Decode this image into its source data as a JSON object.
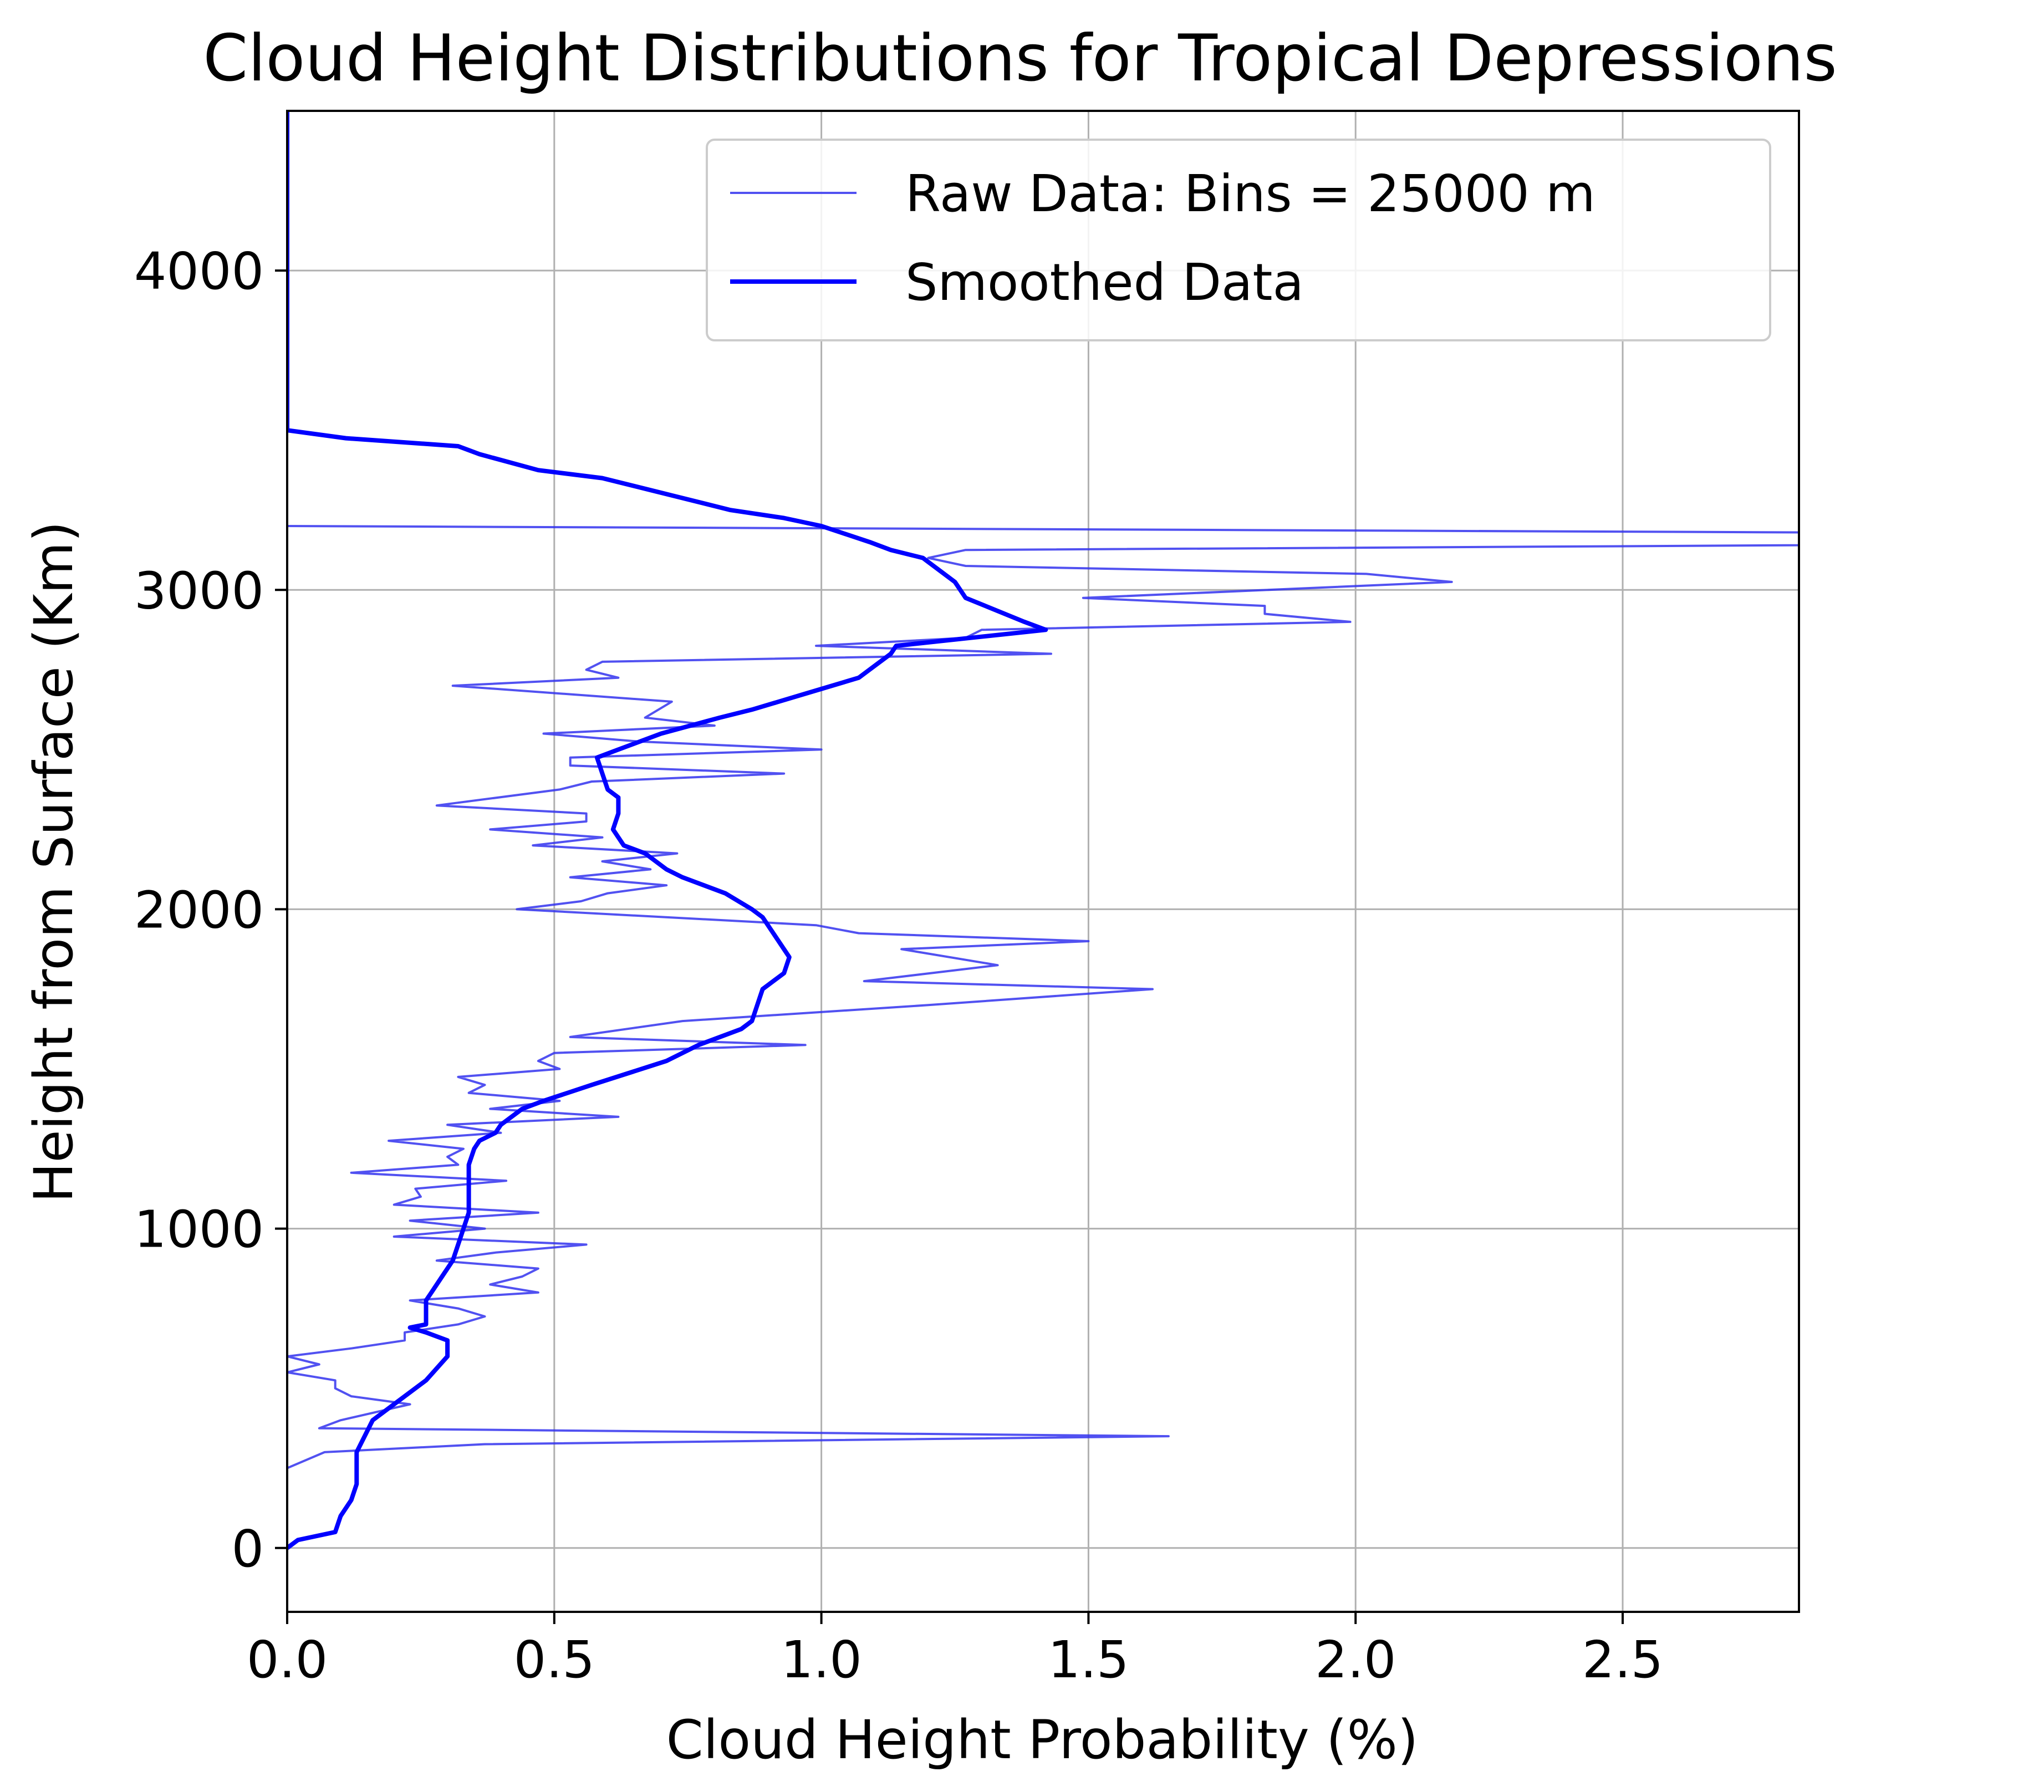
{
  "chart_data": {
    "type": "line",
    "title": "Cloud Height Distributions for Tropical Depressions",
    "xlabel": "Cloud Height Probability (%)",
    "ylabel": "Height from Surface (Km)",
    "xlim": [
      0,
      2.83
    ],
    "ylim": [
      -200,
      4500
    ],
    "grid": true,
    "legend_position": "top-right",
    "xticks": [
      {
        "value": 0.0,
        "label": "0.0"
      },
      {
        "value": 0.5,
        "label": "0.5"
      },
      {
        "value": 1.0,
        "label": "1.0"
      },
      {
        "value": 1.5,
        "label": "1.5"
      },
      {
        "value": 2.0,
        "label": "2.0"
      },
      {
        "value": 2.5,
        "label": "2.5"
      }
    ],
    "yticks": [
      {
        "value": 0,
        "label": "0"
      },
      {
        "value": 1000,
        "label": "1000"
      },
      {
        "value": 2000,
        "label": "2000"
      },
      {
        "value": 3000,
        "label": "3000"
      },
      {
        "value": 4000,
        "label": "4000"
      }
    ],
    "series": [
      {
        "name": "Raw Data: Bins = 25000 m",
        "color": "#3333ee",
        "style": "thin",
        "points": [
          [
            0.0,
            250
          ],
          [
            0.07,
            300
          ],
          [
            0.37,
            325
          ],
          [
            1.65,
            350
          ],
          [
            0.06,
            375
          ],
          [
            0.1,
            400
          ],
          [
            0.23,
            450
          ],
          [
            0.12,
            475
          ],
          [
            0.09,
            500
          ],
          [
            0.09,
            525
          ],
          [
            0.0,
            550
          ],
          [
            0.06,
            575
          ],
          [
            0.0,
            600
          ],
          [
            0.12,
            625
          ],
          [
            0.22,
            650
          ],
          [
            0.22,
            675
          ],
          [
            0.32,
            700
          ],
          [
            0.37,
            725
          ],
          [
            0.32,
            750
          ],
          [
            0.23,
            775
          ],
          [
            0.47,
            800
          ],
          [
            0.38,
            825
          ],
          [
            0.44,
            850
          ],
          [
            0.47,
            875
          ],
          [
            0.28,
            900
          ],
          [
            0.39,
            925
          ],
          [
            0.56,
            950
          ],
          [
            0.2,
            975
          ],
          [
            0.37,
            1000
          ],
          [
            0.23,
            1025
          ],
          [
            0.47,
            1050
          ],
          [
            0.2,
            1075
          ],
          [
            0.25,
            1100
          ],
          [
            0.24,
            1125
          ],
          [
            0.41,
            1150
          ],
          [
            0.12,
            1175
          ],
          [
            0.32,
            1200
          ],
          [
            0.3,
            1225
          ],
          [
            0.33,
            1250
          ],
          [
            0.19,
            1275
          ],
          [
            0.4,
            1300
          ],
          [
            0.3,
            1325
          ],
          [
            0.62,
            1350
          ],
          [
            0.38,
            1375
          ],
          [
            0.51,
            1400
          ],
          [
            0.34,
            1425
          ],
          [
            0.37,
            1450
          ],
          [
            0.32,
            1475
          ],
          [
            0.51,
            1500
          ],
          [
            0.47,
            1525
          ],
          [
            0.5,
            1550
          ],
          [
            0.97,
            1575
          ],
          [
            0.53,
            1600
          ],
          [
            0.74,
            1650
          ],
          [
            1.2,
            1700
          ],
          [
            1.62,
            1750
          ],
          [
            1.08,
            1775
          ],
          [
            1.33,
            1825
          ],
          [
            1.15,
            1875
          ],
          [
            1.5,
            1900
          ],
          [
            1.07,
            1925
          ],
          [
            0.99,
            1950
          ],
          [
            0.43,
            2000
          ],
          [
            0.55,
            2025
          ],
          [
            0.6,
            2050
          ],
          [
            0.71,
            2075
          ],
          [
            0.53,
            2100
          ],
          [
            0.68,
            2125
          ],
          [
            0.59,
            2150
          ],
          [
            0.73,
            2175
          ],
          [
            0.46,
            2200
          ],
          [
            0.59,
            2225
          ],
          [
            0.38,
            2250
          ],
          [
            0.56,
            2275
          ],
          [
            0.56,
            2300
          ],
          [
            0.28,
            2325
          ],
          [
            0.51,
            2375
          ],
          [
            0.57,
            2400
          ],
          [
            0.93,
            2425
          ],
          [
            0.53,
            2450
          ],
          [
            0.53,
            2475
          ],
          [
            1.0,
            2500
          ],
          [
            0.66,
            2525
          ],
          [
            0.48,
            2550
          ],
          [
            0.8,
            2575
          ],
          [
            0.67,
            2600
          ],
          [
            0.72,
            2650
          ],
          [
            0.31,
            2700
          ],
          [
            0.62,
            2725
          ],
          [
            0.56,
            2750
          ],
          [
            0.59,
            2775
          ],
          [
            1.43,
            2800
          ],
          [
            0.99,
            2825
          ],
          [
            1.27,
            2850
          ],
          [
            1.3,
            2875
          ],
          [
            1.99,
            2900
          ],
          [
            1.83,
            2925
          ],
          [
            1.83,
            2950
          ],
          [
            1.49,
            2975
          ],
          [
            2.18,
            3025
          ],
          [
            2.02,
            3050
          ],
          [
            1.27,
            3075
          ],
          [
            1.2,
            3100
          ],
          [
            1.27,
            3125
          ],
          [
            2.83,
            3140
          ],
          [
            2.83,
            3180
          ],
          [
            0.0,
            3200
          ]
        ]
      },
      {
        "name": "Smoothed Data",
        "color": "#0000ff",
        "style": "thick",
        "points": [
          [
            0.0,
            0
          ],
          [
            0.02,
            25
          ],
          [
            0.09,
            50
          ],
          [
            0.1,
            100
          ],
          [
            0.12,
            150
          ],
          [
            0.13,
            200
          ],
          [
            0.13,
            250
          ],
          [
            0.13,
            300
          ],
          [
            0.16,
            400
          ],
          [
            0.2,
            450
          ],
          [
            0.26,
            525
          ],
          [
            0.3,
            600
          ],
          [
            0.3,
            650
          ],
          [
            0.26,
            675
          ],
          [
            0.23,
            690
          ],
          [
            0.26,
            700
          ],
          [
            0.26,
            775
          ],
          [
            0.27,
            800
          ],
          [
            0.29,
            850
          ],
          [
            0.31,
            900
          ],
          [
            0.32,
            950
          ],
          [
            0.33,
            1000
          ],
          [
            0.34,
            1050
          ],
          [
            0.34,
            1100
          ],
          [
            0.34,
            1150
          ],
          [
            0.34,
            1200
          ],
          [
            0.35,
            1250
          ],
          [
            0.36,
            1275
          ],
          [
            0.39,
            1300
          ],
          [
            0.4,
            1325
          ],
          [
            0.44,
            1375
          ],
          [
            0.48,
            1400
          ],
          [
            0.57,
            1450
          ],
          [
            0.71,
            1525
          ],
          [
            0.77,
            1575
          ],
          [
            0.85,
            1625
          ],
          [
            0.87,
            1650
          ],
          [
            0.89,
            1750
          ],
          [
            0.93,
            1800
          ],
          [
            0.94,
            1850
          ],
          [
            0.92,
            1900
          ],
          [
            0.9,
            1950
          ],
          [
            0.89,
            1975
          ],
          [
            0.87,
            2000
          ],
          [
            0.82,
            2050
          ],
          [
            0.74,
            2100
          ],
          [
            0.71,
            2125
          ],
          [
            0.67,
            2175
          ],
          [
            0.63,
            2200
          ],
          [
            0.61,
            2250
          ],
          [
            0.62,
            2300
          ],
          [
            0.62,
            2350
          ],
          [
            0.6,
            2375
          ],
          [
            0.59,
            2425
          ],
          [
            0.58,
            2475
          ],
          [
            0.62,
            2500
          ],
          [
            0.7,
            2550
          ],
          [
            0.81,
            2600
          ],
          [
            0.87,
            2625
          ],
          [
            0.97,
            2675
          ],
          [
            1.07,
            2725
          ],
          [
            1.09,
            2750
          ],
          [
            1.13,
            2800
          ],
          [
            1.14,
            2825
          ],
          [
            1.28,
            2850
          ],
          [
            1.42,
            2875
          ],
          [
            1.38,
            2900
          ],
          [
            1.27,
            2975
          ],
          [
            1.25,
            3025
          ],
          [
            1.19,
            3100
          ],
          [
            1.13,
            3125
          ],
          [
            1.09,
            3150
          ],
          [
            1.0,
            3200
          ],
          [
            0.93,
            3225
          ],
          [
            0.83,
            3250
          ],
          [
            0.71,
            3300
          ],
          [
            0.59,
            3350
          ],
          [
            0.47,
            3375
          ],
          [
            0.36,
            3425
          ],
          [
            0.32,
            3450
          ],
          [
            0.11,
            3475
          ],
          [
            0.0,
            3500
          ],
          [
            0.0,
            3700
          ],
          [
            0.0,
            4000
          ],
          [
            0.0,
            4500
          ]
        ]
      }
    ]
  }
}
